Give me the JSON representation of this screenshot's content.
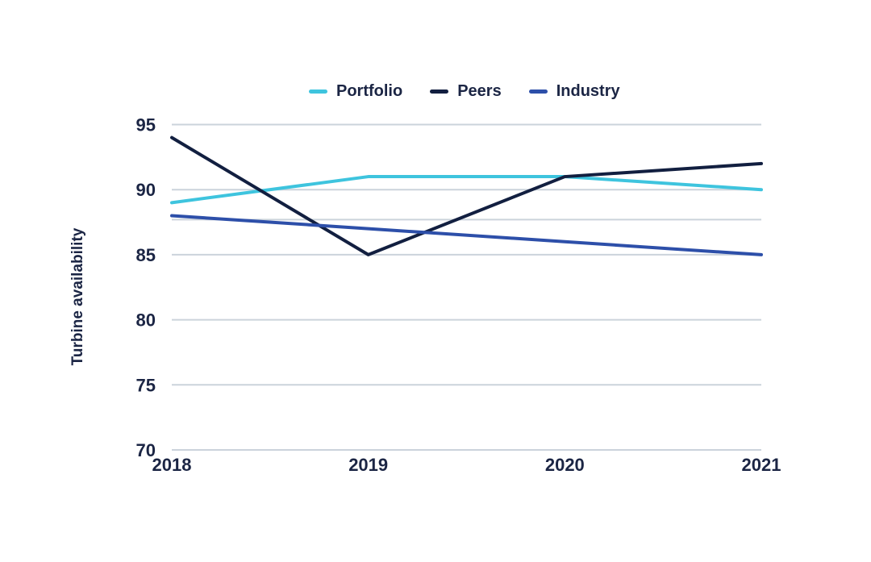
{
  "page": {
    "background_color": "#ffffff",
    "text_color": "#1B2544",
    "gridline_color": "#CBD3DB"
  },
  "chart_data": {
    "type": "line",
    "title": "",
    "ylabel": "Turbine availability",
    "xlabel": "",
    "categories": [
      "2018",
      "2019",
      "2020",
      "2021"
    ],
    "series": [
      {
        "name": "Portfolio",
        "color": "#3EC4DE",
        "values": [
          89,
          91,
          91,
          90
        ]
      },
      {
        "name": "Peers",
        "color": "#121F40",
        "values": [
          94,
          85,
          91,
          92
        ]
      },
      {
        "name": "Industry",
        "color": "#2D4FA9",
        "values": [
          88,
          87,
          86,
          85
        ]
      }
    ],
    "ylim": [
      70,
      95
    ],
    "yticks": [
      70,
      75,
      80,
      85,
      90,
      95
    ],
    "reference_line": 87.7,
    "grid": true,
    "legend_position": "top"
  }
}
